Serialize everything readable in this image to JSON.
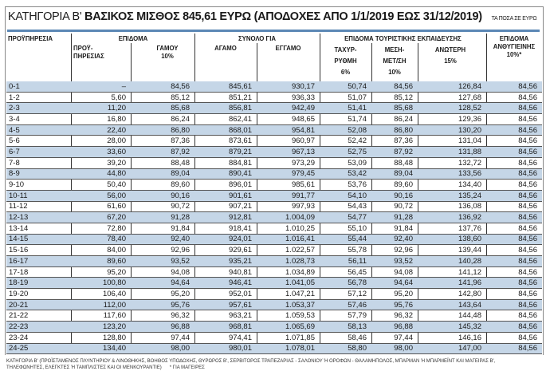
{
  "title": {
    "prefix": "ΚΑΤΗΓΟΡΙΑ Β'",
    "main": "ΒΑΣΙΚΟΣ ΜΙΣΘΟΣ 845,61 ΕΥΡΩ (ΑΠΟΔΟΧΕΣ ΑΠΟ 1/1/2019 ΕΩΣ 31/12/2019)",
    "note": "ΤΑ ΠΟΣΑ ΣΕ ΕΥΡΩ"
  },
  "headers": {
    "experience": "ΠΡΟΫΠΗΡΕΣΙΑ",
    "allowance_group": "ΕΠΙΔΟΜΑ",
    "prior_service": "ΠΡΟΫ-\nΠΗΡΕΣΙΑΣ",
    "marriage": "ΓΑΜΟΥ\n10%",
    "total_group": "ΣΥΝΟΛΟ ΓΙΑ",
    "single": "ΑΓΑΜΟ",
    "married": "ΕΓΓΑΜΟ",
    "tourism_group": "ΕΠΙΔΟΜΑ ΤΟΥΡΙΣΤΙΚΗΣ ΕΚΠΑΙΔΕΥΣΗΣ",
    "fast_track": "ΤΑΧΥΡ-\nΡΥΘΜΗ\n6%",
    "secondary": "ΜΕΣΗ-\nΜΕΤ/ΣΗ\n10%",
    "higher": "ΑΝΩΤΕΡΗ\n15%",
    "hazard": "ΕΠΙΔΟΜΑ\nΑΝΘΥΓΙΕΙΝΗΣ\n10%*"
  },
  "rows": [
    [
      "0-1",
      "–",
      "84,56",
      "845,61",
      "930,17",
      "50,74",
      "84,56",
      "126,84",
      "84,56"
    ],
    [
      "1-2",
      "5,60",
      "85,12",
      "851,21",
      "936,33",
      "51,07",
      "85,12",
      "127,68",
      "84,56"
    ],
    [
      "2-3",
      "11,20",
      "85,68",
      "856,81",
      "942,49",
      "51,41",
      "85,68",
      "128,52",
      "84,56"
    ],
    [
      "3-4",
      "16,80",
      "86,24",
      "862,41",
      "948,65",
      "51,74",
      "86,24",
      "129,36",
      "84,56"
    ],
    [
      "4-5",
      "22,40",
      "86,80",
      "868,01",
      "954,81",
      "52,08",
      "86,80",
      "130,20",
      "84,56"
    ],
    [
      "5-6",
      "28,00",
      "87,36",
      "873,61",
      "960,97",
      "52,42",
      "87,36",
      "131,04",
      "84,56"
    ],
    [
      "6-7",
      "33,60",
      "87,92",
      "879,21",
      "967,13",
      "52,75",
      "87,92",
      "131,88",
      "84,56"
    ],
    [
      "7-8",
      "39,20",
      "88,48",
      "884,81",
      "973,29",
      "53,09",
      "88,48",
      "132,72",
      "84,56"
    ],
    [
      "8-9",
      "44,80",
      "89,04",
      "890,41",
      "979,45",
      "53,42",
      "89,04",
      "133,56",
      "84,56"
    ],
    [
      "9-10",
      "50,40",
      "89,60",
      "896,01",
      "985,61",
      "53,76",
      "89,60",
      "134,40",
      "84,56"
    ],
    [
      "10-11",
      "56,00",
      "90,16",
      "901,61",
      "991,77",
      "54,10",
      "90,16",
      "135,24",
      "84,56"
    ],
    [
      "11-12",
      "61,60",
      "90,72",
      "907,21",
      "997,93",
      "54,43",
      "90,72",
      "136,08",
      "84,56"
    ],
    [
      "12-13",
      "67,20",
      "91,28",
      "912,81",
      "1.004,09",
      "54,77",
      "91,28",
      "136,92",
      "84,56"
    ],
    [
      "13-14",
      "72,80",
      "91,84",
      "918,41",
      "1.010,25",
      "55,10",
      "91,84",
      "137,76",
      "84,56"
    ],
    [
      "14-15",
      "78,40",
      "92,40",
      "924,01",
      "1.016,41",
      "55,44",
      "92,40",
      "138,60",
      "84,56"
    ],
    [
      "15-16",
      "84,00",
      "92,96",
      "929,61",
      "1.022,57",
      "55,78",
      "92,96",
      "139,44",
      "84,56"
    ],
    [
      "16-17",
      "89,60",
      "93,52",
      "935,21",
      "1.028,73",
      "56,11",
      "93,52",
      "140,28",
      "84,56"
    ],
    [
      "17-18",
      "95,20",
      "94,08",
      "940,81",
      "1.034,89",
      "56,45",
      "94,08",
      "141,12",
      "84,56"
    ],
    [
      "18-19",
      "100,80",
      "94,64",
      "946,41",
      "1.041,05",
      "56,78",
      "94,64",
      "141,96",
      "84,56"
    ],
    [
      "19-20",
      "106,40",
      "95,20",
      "952,01",
      "1.047,21",
      "57,12",
      "95,20",
      "142,80",
      "84,56"
    ],
    [
      "20-21",
      "112,00",
      "95,76",
      "957,61",
      "1.053,37",
      "57,46",
      "95,76",
      "143,64",
      "84,56"
    ],
    [
      "21-22",
      "117,60",
      "96,32",
      "963,21",
      "1.059,53",
      "57,79",
      "96,32",
      "144,48",
      "84,56"
    ],
    [
      "22-23",
      "123,20",
      "96,88",
      "968,81",
      "1.065,69",
      "58,13",
      "96,88",
      "145,32",
      "84,56"
    ],
    [
      "23-24",
      "128,80",
      "97,44",
      "974,41",
      "1.071,85",
      "58,46",
      "97,44",
      "146,16",
      "84,56"
    ],
    [
      "24-25",
      "134,40",
      "98,00",
      "980,01",
      "1.078,01",
      "58,80",
      "98,00",
      "147,00",
      "84,56"
    ]
  ],
  "footer": {
    "line1": "ΚΑΤΗΓΟΡΙΑ Β' (ΠΡΟΪΣΤΑΜΕΝΟΣ ΠΛΥΝΤΗΡΙΟΥ & ΛΙΝΟΘΗΚΗΣ, ΒΟΗΘΟΣ ΥΠΟΔΟΧΗΣ, ΘΥΡΩΡΟΣ Β', ΣΕΡΒΙΤΟΡΟΣ ΤΡΑΠΕΖΑΡΙΑΣ - ΣΑΛΟΝΙΟΥ Ή ΟΡΟΦΩΝ - ΘΑΛΑΜΗΠΟΛΟΣ, ΜΠΑΡΜΑΝ Ή ΜΠΑΡΜΕΪΝΤ ΚΑΙ ΜΑΓΕΙΡΑΣ Β',",
    "line2": "ΤΗΛΕΦΩΝΗΤΕΣ, ΕΛΕΓΚΤΕΣ Ή ΤΑΜΠΛΙΣΤΕΣ ΚΑΙ ΟΙ ΜΕΝΚΟΥΡΑΝΤΙΕ)",
    "note": "* ΓΙΑ ΜΑΓΕΙΡΕΣ"
  }
}
